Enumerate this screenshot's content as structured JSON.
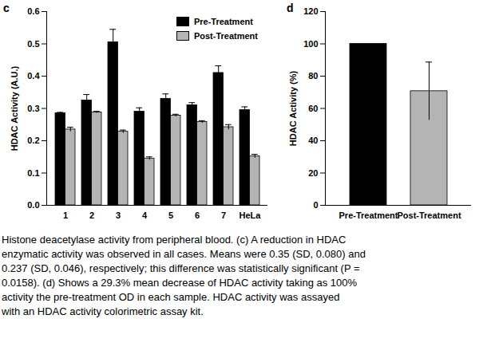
{
  "chart_data": [
    {
      "type": "bar",
      "title": "c",
      "y_label": "HDAC Activity (A.U.)",
      "categories": [
        "1",
        "2",
        "3",
        "4",
        "5",
        "6",
        "7",
        "HeLa"
      ],
      "series": [
        {
          "name": "Pre-Treatment",
          "color": "#000000",
          "values": [
            0.285,
            0.325,
            0.505,
            0.29,
            0.33,
            0.31,
            0.41,
            0.295
          ],
          "errors": [
            0.003,
            0.018,
            0.04,
            0.012,
            0.015,
            0.008,
            0.022,
            0.01
          ]
        },
        {
          "name": "Post-Treatment",
          "color": "#b4b4b4",
          "values": [
            0.235,
            0.288,
            0.228,
            0.145,
            0.278,
            0.258,
            0.242,
            0.152
          ],
          "errors": [
            0.007,
            0.003,
            0.005,
            0.005,
            0.004,
            0.004,
            0.008,
            0.006
          ]
        }
      ],
      "ylim": [
        0,
        0.6
      ],
      "yticks": [
        {
          "value": 0,
          "label": "0.0"
        },
        0.1,
        0.2,
        0.3,
        0.4,
        0.5,
        0.6
      ],
      "legend": "top-right"
    },
    {
      "type": "bar",
      "title": "d",
      "y_label": "HDAC Activity (%)",
      "categories": [
        "Pre-Treatment",
        "Post-Treatment"
      ],
      "values": [
        100,
        70.7
      ],
      "errors": [
        null,
        18
      ],
      "colors": [
        "#000000",
        "#b4b4b4"
      ],
      "ylim": [
        0,
        120
      ],
      "yticks": [
        0,
        20,
        40,
        60,
        80,
        100,
        120
      ]
    }
  ],
  "caption": [
    "Histone deacetylase activity from peripheral blood. (c) A reduction in HDAC",
    "enzymatic activity was observed in all cases. Means were 0.35 (SD, 0.080) and",
    "0.237 (SD, 0.046), respectively; this difference was statistically significant (P =",
    "0.0158). (d) Shows a 29.3% mean decrease of HDAC activity taking as 100%",
    "activity the pre-treatment OD in each sample. HDAC activity was assayed",
    "with an HDAC activity colorimetric assay kit."
  ]
}
